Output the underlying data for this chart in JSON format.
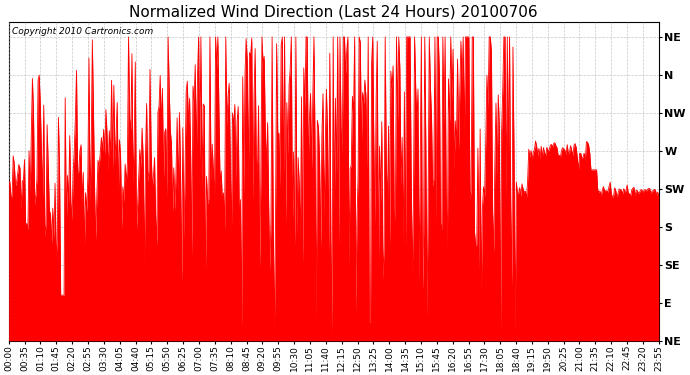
{
  "title": "Normalized Wind Direction (Last 24 Hours) 20100706",
  "copyright_text": "Copyright 2010 Cartronics.com",
  "background_color": "#ffffff",
  "line_color": "#ff0000",
  "grid_color": "#b0b0b0",
  "ytick_labels": [
    "NE",
    "N",
    "NW",
    "W",
    "SW",
    "S",
    "SE",
    "E",
    "NE"
  ],
  "ytick_positions": [
    9,
    8,
    7,
    6,
    5,
    4,
    3,
    2,
    1
  ],
  "xtick_labels": [
    "00:00",
    "00:35",
    "01:10",
    "01:45",
    "02:20",
    "02:55",
    "03:30",
    "04:05",
    "04:40",
    "05:15",
    "05:50",
    "06:25",
    "07:00",
    "07:35",
    "08:10",
    "08:45",
    "09:20",
    "09:55",
    "10:30",
    "11:05",
    "11:40",
    "12:15",
    "12:50",
    "13:25",
    "14:00",
    "14:35",
    "15:10",
    "15:45",
    "16:20",
    "16:55",
    "17:30",
    "18:05",
    "18:40",
    "19:15",
    "19:50",
    "20:25",
    "21:00",
    "21:35",
    "22:10",
    "22:45",
    "23:20",
    "23:55"
  ],
  "ylim": [
    1.0,
    9.4
  ],
  "xlim": [
    0,
    41
  ],
  "title_fontsize": 11,
  "copyright_fontsize": 6.5,
  "tick_fontsize": 6.5,
  "ytick_fontsize": 8,
  "line_width": 0.6,
  "figwidth": 6.9,
  "figheight": 3.75,
  "dpi": 100
}
